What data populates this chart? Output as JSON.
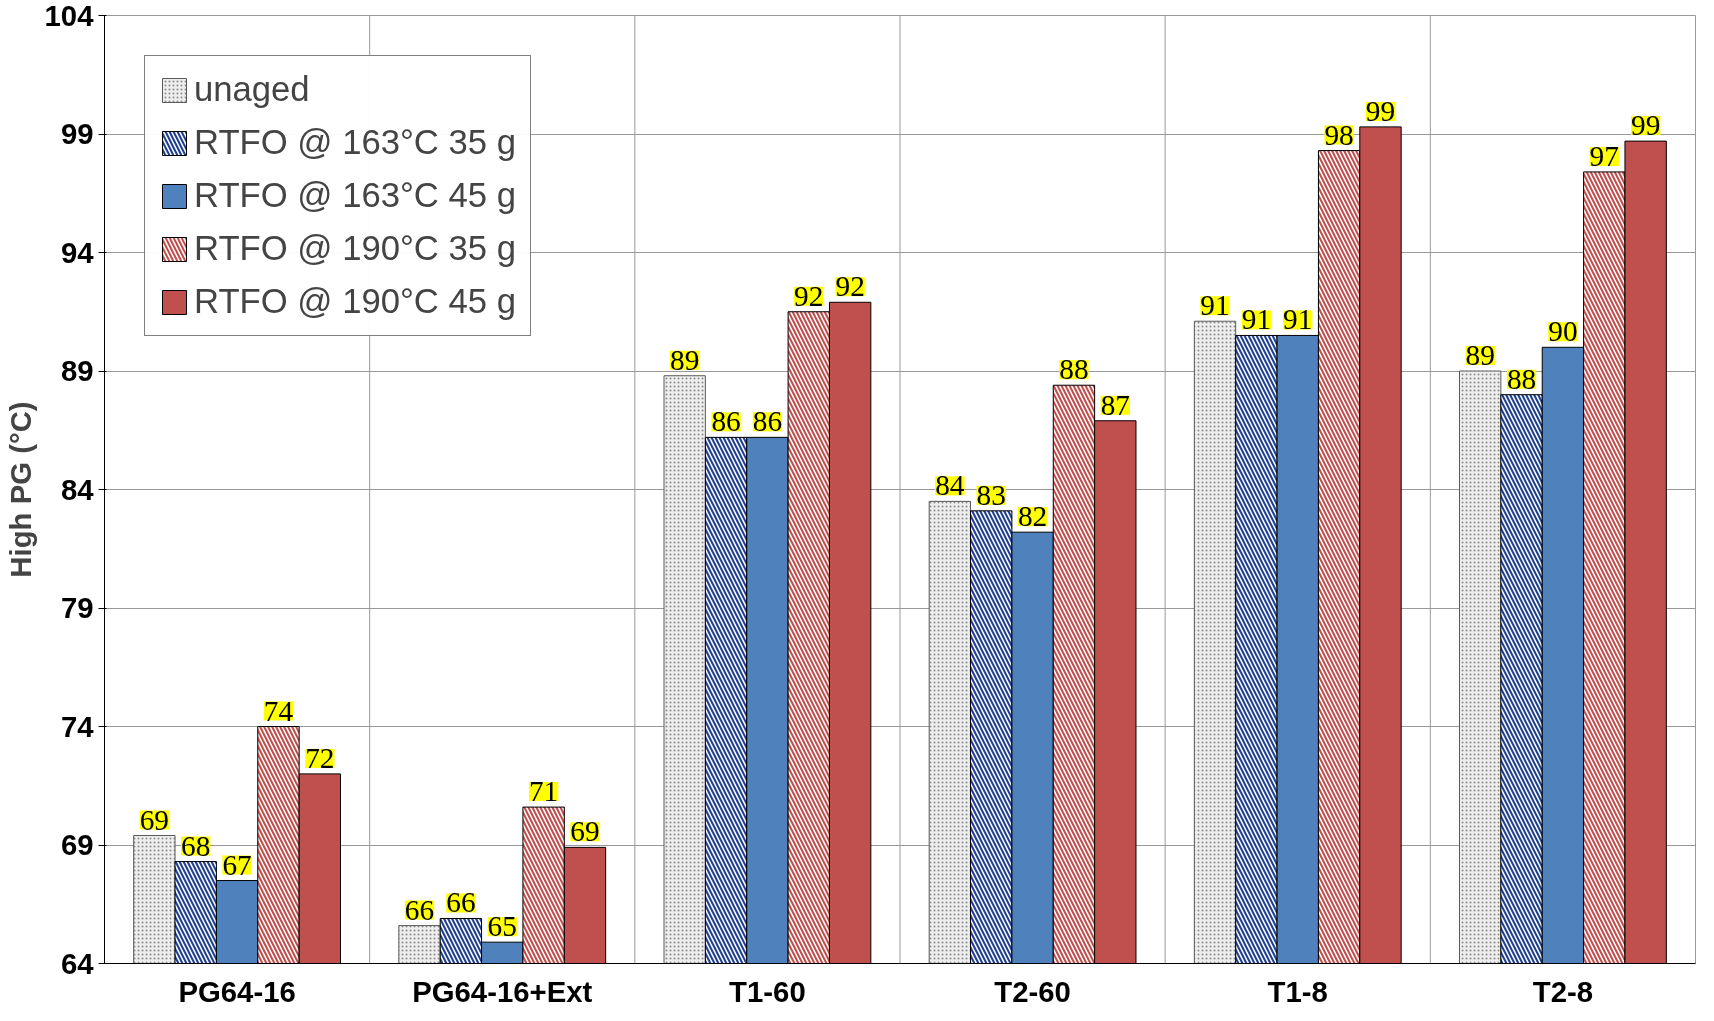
{
  "chart_data": {
    "type": "bar",
    "ylabel": "High PG (°C)",
    "categories": [
      "PG64-16",
      "PG64-16+Ext",
      "T1-60",
      "T2-60",
      "T1-8",
      "T2-8"
    ],
    "ylim": [
      64,
      104
    ],
    "yticks": [
      64,
      69,
      74,
      79,
      84,
      89,
      94,
      99,
      104
    ],
    "grid": true,
    "legend": "top left",
    "series": [
      {
        "name": "unaged",
        "color": "#eeeeee",
        "values": [
          69.4,
          65.6,
          88.8,
          83.5,
          91.1,
          89.0
        ],
        "value_labels": [
          "69",
          "66",
          "89",
          "84",
          "91",
          "89"
        ]
      },
      {
        "name": "RTFO @ 163°C 35 g",
        "color": "#1f3f8f",
        "values": [
          68.3,
          65.9,
          86.2,
          83.1,
          90.5,
          88.0
        ],
        "value_labels": [
          "68",
          "66",
          "86",
          "83",
          "91",
          "88"
        ]
      },
      {
        "name": "RTFO @ 163°C 45 g",
        "color": "#4f81bd",
        "values": [
          67.5,
          64.9,
          86.2,
          82.2,
          90.5,
          90.0
        ],
        "value_labels": [
          "67",
          "65",
          "86",
          "82",
          "91",
          "90"
        ]
      },
      {
        "name": "RTFO @ 190°C 35 g",
        "color": "#c0504d",
        "values": [
          74.0,
          70.6,
          91.5,
          88.4,
          98.3,
          97.4
        ],
        "value_labels": [
          "74",
          "71",
          "92",
          "88",
          "98",
          "97"
        ]
      },
      {
        "name": "RTFO @ 190°C 45 g",
        "color": "#c0504d",
        "values": [
          72.0,
          68.9,
          91.9,
          86.9,
          99.3,
          98.7
        ],
        "value_labels": [
          "72",
          "69",
          "92",
          "87",
          "99",
          "99"
        ]
      }
    ]
  }
}
